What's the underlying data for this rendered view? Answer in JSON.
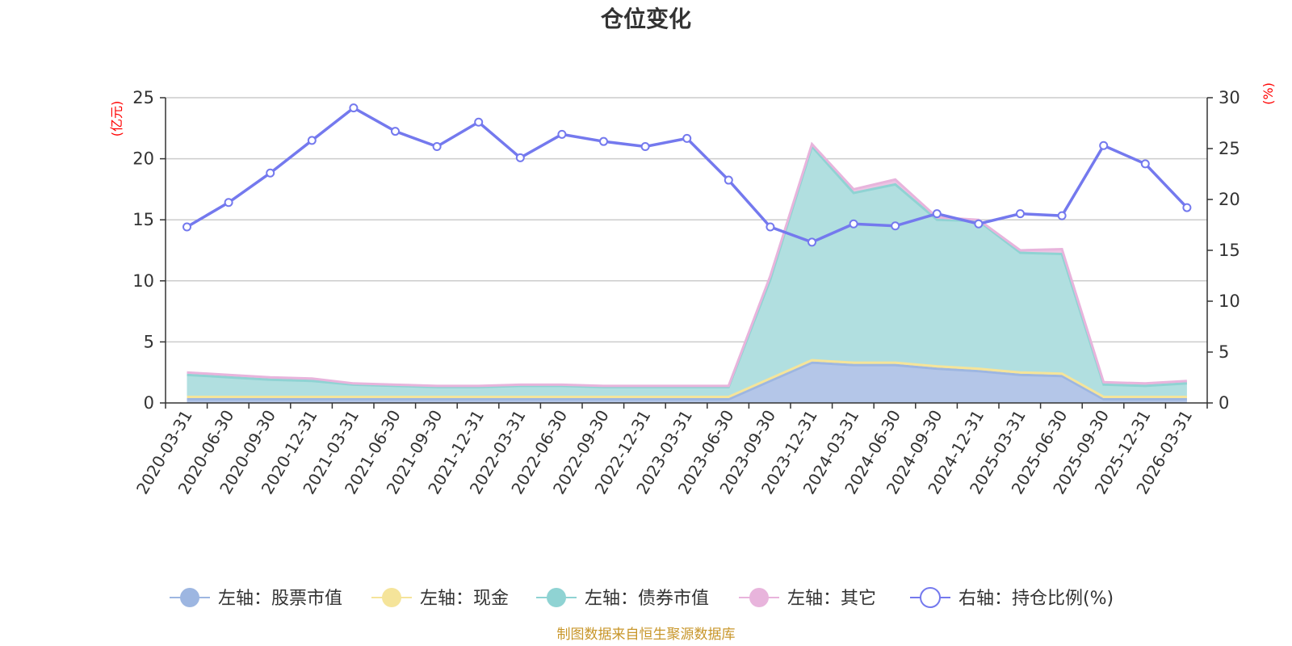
{
  "chart_data": {
    "type": "area",
    "title": "仓位变化",
    "y_left_label": "(亿元)",
    "y_right_label": "(%)",
    "y_left_range": [
      0,
      25
    ],
    "y_left_ticks": [
      0,
      5,
      10,
      15,
      20,
      25
    ],
    "y_right_range": [
      0,
      30
    ],
    "y_right_ticks": [
      0,
      5,
      10,
      15,
      20,
      25,
      30
    ],
    "categories": [
      "2020-03-31",
      "2020-06-30",
      "2020-09-30",
      "2020-12-31",
      "2021-03-31",
      "2021-06-30",
      "2021-09-30",
      "2021-12-31",
      "2022-03-31",
      "2022-06-30",
      "2022-09-30",
      "2022-12-31",
      "2023-03-31",
      "2023-06-30",
      "2023-09-30",
      "2023-12-31",
      "2024-03-31",
      "2024-06-30",
      "2024-09-30",
      "2024-12-31",
      "2025-03-31",
      "2025-06-30",
      "2025-09-30",
      "2025-12-31",
      "2026-03-31"
    ],
    "series": [
      {
        "name": "左轴：股票市值",
        "axis": "left",
        "stack": true,
        "color": "#9db6e1",
        "fill": "#b4c6e8",
        "values": [
          0.3,
          0.3,
          0.3,
          0.3,
          0.3,
          0.3,
          0.3,
          0.3,
          0.3,
          0.3,
          0.3,
          0.3,
          0.3,
          0.3,
          1.8,
          3.3,
          3.1,
          3.1,
          2.8,
          2.6,
          2.3,
          2.2,
          0.3,
          0.3,
          0.3
        ]
      },
      {
        "name": "左轴：现金",
        "axis": "left",
        "stack": true,
        "color": "#f5e49a",
        "fill": "#f5e49a",
        "values": [
          0.2,
          0.2,
          0.2,
          0.2,
          0.2,
          0.2,
          0.2,
          0.2,
          0.2,
          0.2,
          0.2,
          0.2,
          0.2,
          0.2,
          0.2,
          0.2,
          0.2,
          0.2,
          0.2,
          0.2,
          0.2,
          0.2,
          0.2,
          0.2,
          0.2
        ]
      },
      {
        "name": "左轴：债券市值",
        "axis": "left",
        "stack": true,
        "color": "#8fd3d3",
        "fill": "#b1dfe0",
        "values": [
          1.8,
          1.6,
          1.4,
          1.3,
          1.0,
          0.9,
          0.8,
          0.8,
          0.9,
          0.9,
          0.8,
          0.8,
          0.8,
          0.8,
          8.1,
          17.5,
          13.9,
          14.6,
          12.0,
          12.1,
          9.8,
          9.8,
          1.0,
          0.9,
          1.1
        ]
      },
      {
        "name": "左轴：其它",
        "axis": "left",
        "stack": true,
        "color": "#e8b4dc",
        "fill": "#ecc4e3",
        "values": [
          0.2,
          0.2,
          0.2,
          0.2,
          0.1,
          0.1,
          0.1,
          0.1,
          0.1,
          0.1,
          0.1,
          0.1,
          0.1,
          0.1,
          0.3,
          0.2,
          0.3,
          0.4,
          0.2,
          0.1,
          0.2,
          0.4,
          0.2,
          0.2,
          0.2
        ]
      },
      {
        "name": "右轴：持仓比例(%)",
        "axis": "right",
        "stack": false,
        "color": "#7479ee",
        "values": [
          17.3,
          19.7,
          22.6,
          25.8,
          29.0,
          26.7,
          25.2,
          27.6,
          24.1,
          26.4,
          25.7,
          25.2,
          26.0,
          21.9,
          17.3,
          15.8,
          17.6,
          17.4,
          18.6,
          17.6,
          18.6,
          18.4,
          25.3,
          23.5,
          19.2
        ]
      }
    ]
  },
  "source_note": "制图数据来自恒生聚源数据库"
}
